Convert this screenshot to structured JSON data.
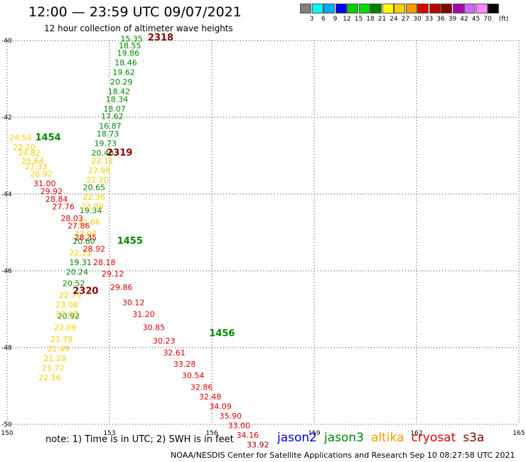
{
  "header": {
    "title": "12:00 — 23:59 UTC 09/07/2021",
    "subtitle": "12 hour collection of altimeter wave heights"
  },
  "colorbar": {
    "unit": "(ft)",
    "ticks": [
      "3",
      "6",
      "9",
      "12",
      "15",
      "18",
      "21",
      "24",
      "27",
      "30",
      "33",
      "36",
      "39",
      "42",
      "45",
      "70"
    ],
    "colors": [
      "#808080",
      "#00ffff",
      "#00aaff",
      "#0000ff",
      "#00cc00",
      "#00dd00",
      "#008000",
      "#ffff00",
      "#ffcc00",
      "#ff9900",
      "#dd0000",
      "#bb0000",
      "#880000",
      "#aa00aa",
      "#cc66ff",
      "#ff88ff",
      "#000000"
    ]
  },
  "footer": {
    "note": "note:  1) Time is in UTC;  2) SWH is in feet",
    "credit": "NOAA/NESDIS Center for Satellite Applications and Research    Sep 10 08:27:58 UTC 2021",
    "satellites": [
      {
        "name": "jason2",
        "color": "#0000dd"
      },
      {
        "name": "jason3",
        "color": "#008800"
      },
      {
        "name": "altika",
        "color": "#ff9900"
      },
      {
        "name": "cryosat",
        "color": "#dd0000"
      },
      {
        "name": "s3a",
        "color": "#880000"
      }
    ]
  },
  "chart_data": {
    "type": "scatter",
    "title": "12:00 — 23:59 UTC 09/07/2021",
    "subtitle": "12 hour collection of altimeter wave heights",
    "xlim": [
      150,
      165
    ],
    "ylim": [
      -50,
      -40
    ],
    "x_ticks": [
      "150",
      "153",
      "156",
      "159",
      "162",
      "165"
    ],
    "y_ticks": [
      "-40",
      "-42",
      "-44",
      "-46",
      "-48",
      "-50"
    ],
    "grid": true,
    "pass_labels": [
      {
        "text": "2318",
        "x": 154.5,
        "y": -40.0,
        "color": "#880000"
      },
      {
        "text": "1454",
        "x": 151.2,
        "y": -42.6,
        "color": "#008800"
      },
      {
        "text": "2319",
        "x": 153.3,
        "y": -43.0,
        "color": "#880000"
      },
      {
        "text": "1455",
        "x": 153.6,
        "y": -45.3,
        "color": "#008800"
      },
      {
        "text": "2320",
        "x": 152.3,
        "y": -46.6,
        "color": "#880000"
      },
      {
        "text": "1456",
        "x": 156.3,
        "y": -47.7,
        "color": "#008800"
      }
    ],
    "series": [
      {
        "name": "jason3",
        "color": "#008800",
        "points": [
          {
            "x": 153.65,
            "y": -40.03,
            "v": "15.35"
          },
          {
            "x": 153.6,
            "y": -40.2,
            "v": "18.55"
          },
          {
            "x": 153.55,
            "y": -40.4,
            "v": "19.86"
          },
          {
            "x": 153.48,
            "y": -40.65,
            "v": "18.46"
          },
          {
            "x": 153.42,
            "y": -40.9,
            "v": "19.62"
          },
          {
            "x": 153.35,
            "y": -41.15,
            "v": "20.29"
          },
          {
            "x": 153.28,
            "y": -41.4,
            "v": "18.42"
          },
          {
            "x": 153.22,
            "y": -41.6,
            "v": "18.34"
          },
          {
            "x": 153.15,
            "y": -41.85,
            "v": "18.07"
          },
          {
            "x": 153.08,
            "y": -42.05,
            "v": "17.62"
          },
          {
            "x": 153.02,
            "y": -42.3,
            "v": "16.87"
          },
          {
            "x": 152.95,
            "y": -42.5,
            "v": "18.73"
          },
          {
            "x": 152.88,
            "y": -42.75,
            "v": "19.73"
          },
          {
            "x": 152.8,
            "y": -43.0,
            "v": "20.40"
          },
          {
            "x": 152.55,
            "y": -43.9,
            "v": "20.65"
          },
          {
            "x": 152.45,
            "y": -44.5,
            "v": "19.34"
          },
          {
            "x": 152.25,
            "y": -45.3,
            "v": "20.60"
          },
          {
            "x": 152.15,
            "y": -45.85,
            "v": "19.31"
          },
          {
            "x": 152.05,
            "y": -46.1,
            "v": "20.24"
          },
          {
            "x": 151.95,
            "y": -46.4,
            "v": "20.52"
          },
          {
            "x": 151.8,
            "y": -47.25,
            "v": "20.92"
          }
        ]
      },
      {
        "name": "altika",
        "color": "#ffcc00",
        "points": [
          {
            "x": 150.4,
            "y": -42.6,
            "v": "24.54"
          },
          {
            "x": 150.5,
            "y": -42.85,
            "v": "22.20"
          },
          {
            "x": 150.65,
            "y": -43.0,
            "v": "24.82"
          },
          {
            "x": 150.75,
            "y": -43.2,
            "v": "25.64"
          },
          {
            "x": 150.85,
            "y": -43.35,
            "v": "27.33"
          },
          {
            "x": 151.0,
            "y": -43.55,
            "v": "26.92"
          },
          {
            "x": 152.8,
            "y": -43.2,
            "v": "22.11"
          },
          {
            "x": 152.7,
            "y": -43.45,
            "v": "22.98"
          },
          {
            "x": 152.65,
            "y": -43.7,
            "v": "21.20"
          },
          {
            "x": 152.55,
            "y": -44.15,
            "v": "22.36"
          },
          {
            "x": 152.5,
            "y": -44.4,
            "v": "23.89"
          },
          {
            "x": 152.4,
            "y": -44.8,
            "v": "21.66"
          },
          {
            "x": 152.3,
            "y": -45.1,
            "v": "22.07"
          },
          {
            "x": 152.15,
            "y": -45.6,
            "v": "22.21"
          },
          {
            "x": 151.85,
            "y": -46.7,
            "v": "22.73"
          },
          {
            "x": 151.75,
            "y": -46.95,
            "v": "23.08"
          },
          {
            "x": 151.75,
            "y": -47.2,
            "v": "22.08"
          },
          {
            "x": 151.7,
            "y": -47.55,
            "v": "22.09"
          },
          {
            "x": 151.6,
            "y": -47.85,
            "v": "21.79"
          },
          {
            "x": 151.5,
            "y": -48.1,
            "v": "22.49"
          },
          {
            "x": 151.4,
            "y": -48.35,
            "v": "21.28"
          },
          {
            "x": 151.35,
            "y": -48.6,
            "v": "21.72"
          },
          {
            "x": 151.25,
            "y": -48.85,
            "v": "22.16"
          }
        ]
      },
      {
        "name": "cryosat",
        "color": "#dd0000",
        "points": [
          {
            "x": 151.1,
            "y": -43.8,
            "v": "31.00"
          },
          {
            "x": 151.3,
            "y": -44.0,
            "v": "29.92"
          },
          {
            "x": 151.45,
            "y": -44.2,
            "v": "28.84"
          },
          {
            "x": 151.65,
            "y": -44.4,
            "v": "27.76"
          },
          {
            "x": 151.9,
            "y": -44.7,
            "v": "28.03"
          },
          {
            "x": 152.1,
            "y": -44.9,
            "v": "27.86"
          },
          {
            "x": 152.3,
            "y": -45.2,
            "v": "28.35"
          },
          {
            "x": 152.55,
            "y": -45.5,
            "v": "28.92"
          },
          {
            "x": 152.85,
            "y": -45.85,
            "v": "28.18"
          },
          {
            "x": 153.1,
            "y": -46.15,
            "v": "29.12"
          },
          {
            "x": 153.35,
            "y": -46.5,
            "v": "29.86"
          },
          {
            "x": 153.7,
            "y": -46.9,
            "v": "30.12"
          },
          {
            "x": 154.0,
            "y": -47.2,
            "v": "31.20"
          },
          {
            "x": 154.3,
            "y": -47.55,
            "v": "30.85"
          },
          {
            "x": 154.6,
            "y": -47.9,
            "v": "30.23"
          },
          {
            "x": 154.9,
            "y": -48.2,
            "v": "32.61"
          },
          {
            "x": 155.2,
            "y": -48.5,
            "v": "33.28"
          },
          {
            "x": 155.45,
            "y": -48.8,
            "v": "30.54"
          },
          {
            "x": 155.7,
            "y": -49.1,
            "v": "32.86"
          },
          {
            "x": 155.95,
            "y": -49.35,
            "v": "32.48"
          },
          {
            "x": 156.25,
            "y": -49.6,
            "v": "34.09"
          },
          {
            "x": 156.55,
            "y": -49.85,
            "v": "35.90"
          },
          {
            "x": 156.8,
            "y": -50.1,
            "v": "33.00"
          },
          {
            "x": 157.05,
            "y": -50.35,
            "v": "34.16"
          }
        ]
      },
      {
        "name": "s3a",
        "color": "#880000",
        "points": [
          {
            "x": 157.35,
            "y": -50.6,
            "v": "33.92"
          }
        ]
      }
    ]
  }
}
